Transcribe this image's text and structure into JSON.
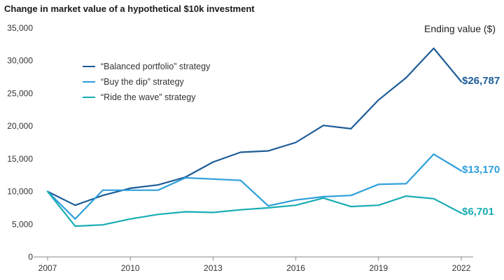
{
  "title": "Change in market value of a hypothetical $10k investment",
  "ending_header": "Ending value ($)",
  "colors": {
    "balanced": "#1d5c97",
    "buy_the_dip": "#2e9fdb",
    "ride_the_wave": "#19adb4",
    "axis": "#888888",
    "tick_text": "#333333"
  },
  "chart_data": {
    "type": "line",
    "title": "Change in market value of a hypothetical $10k investment",
    "xlabel": "",
    "ylabel": "",
    "x": [
      2007,
      2008,
      2009,
      2010,
      2011,
      2012,
      2013,
      2014,
      2015,
      2016,
      2017,
      2018,
      2019,
      2020,
      2021,
      2022
    ],
    "xlim": [
      2007,
      2022
    ],
    "ylim": [
      0,
      35000
    ],
    "x_ticks": [
      2007,
      2010,
      2013,
      2016,
      2019,
      2022
    ],
    "x_tick_labels": [
      "2007",
      "2010",
      "2013",
      "2016",
      "2019",
      "2022"
    ],
    "y_ticks": [
      0,
      5000,
      10000,
      15000,
      20000,
      25000,
      30000,
      35000
    ],
    "y_tick_labels": [
      "0",
      "5,000",
      "10,000",
      "15,000",
      "20,000",
      "25,000",
      "30,000",
      "35,000"
    ],
    "grid": false,
    "legend_position": "top-left",
    "series": [
      {
        "key": "balanced",
        "name": "“Balanced portfolio” strategy",
        "values": [
          10000,
          7900,
          9400,
          10500,
          11000,
          12200,
          14500,
          16000,
          16200,
          17500,
          20100,
          19600,
          24000,
          27400,
          31900,
          26787
        ],
        "end_label": "$26,787"
      },
      {
        "key": "buy_the_dip",
        "name": "“Buy the dip” strategy",
        "values": [
          10000,
          5800,
          10200,
          10200,
          10200,
          12100,
          11900,
          11700,
          7800,
          8700,
          9200,
          9400,
          11100,
          11200,
          15700,
          13170
        ],
        "end_label": "$13,170"
      },
      {
        "key": "ride_the_wave",
        "name": "“Ride the wave” strategy",
        "values": [
          10000,
          4700,
          4900,
          5800,
          6500,
          6900,
          6800,
          7200,
          7500,
          7900,
          9000,
          7700,
          7900,
          9300,
          8900,
          6701
        ],
        "end_label": "$6,701"
      }
    ]
  }
}
